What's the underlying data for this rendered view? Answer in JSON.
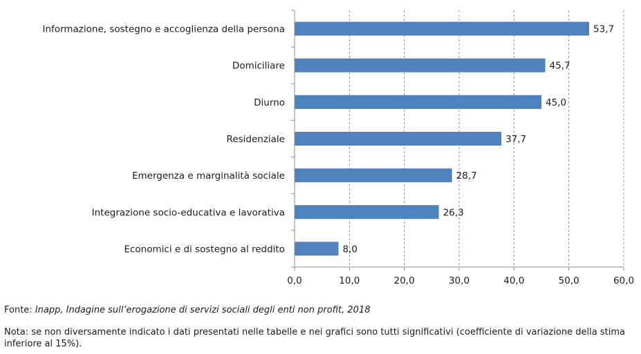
{
  "chart_data": {
    "type": "bar",
    "orientation": "horizontal",
    "categories": [
      "Informazione, sostegno e accoglienza della persona",
      "Domiciliare",
      "Diurno",
      "Residenziale",
      "Emergenza e marginalità sociale",
      "Integrazione socio-educativa e lavorativa",
      "Economici e di sostegno al reddito"
    ],
    "values": [
      53.7,
      45.7,
      45.0,
      37.7,
      28.7,
      26.3,
      8.0
    ],
    "value_labels": [
      "53,7",
      "45,7",
      "45,0",
      "37,7",
      "28,7",
      "26,3",
      "8,0"
    ],
    "xlim": [
      0,
      60
    ],
    "xticks": [
      0,
      10,
      20,
      30,
      40,
      50,
      60
    ],
    "xtick_labels": [
      "0,0",
      "10,0",
      "20,0",
      "30,0",
      "40,0",
      "50,0",
      "60,0"
    ],
    "grid": "vertical dashed",
    "bar_color": "#4f81bd"
  },
  "source": {
    "lead": "Fonte: ",
    "text": "Inapp, Indagine sull’erogazione di servizi sociali degli enti non profit, 2018"
  },
  "note": "Nota: se non diversamente indicato i dati presentati nelle tabelle e nei grafici sono tutti significativi (coefficiente di variazione della stima inferiore al 15%)."
}
